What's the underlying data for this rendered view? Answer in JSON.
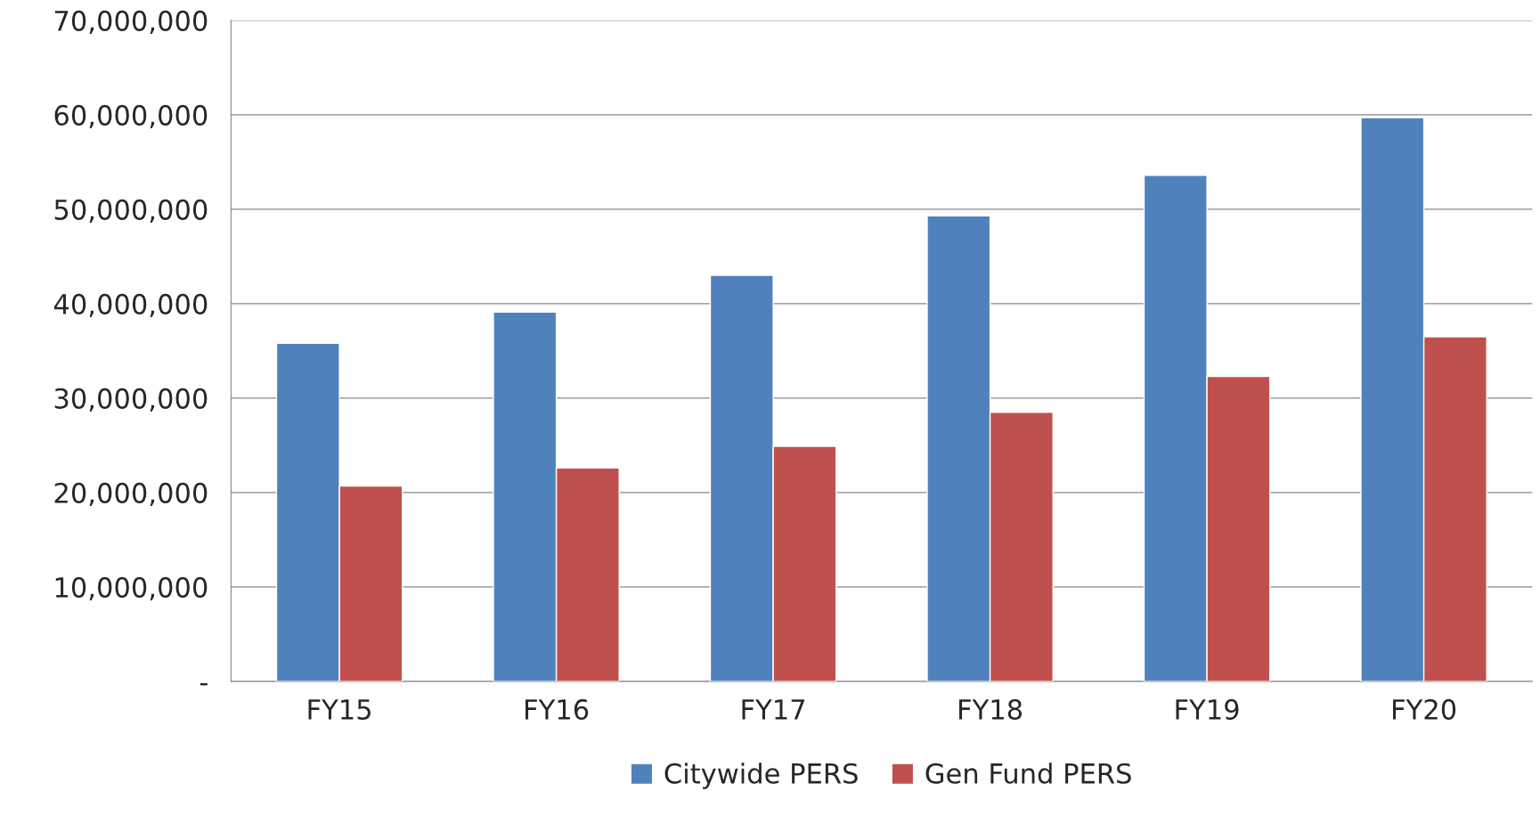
{
  "chart_data": {
    "type": "bar",
    "categories": [
      "FY15",
      "FY16",
      "FY17",
      "FY18",
      "FY19",
      "FY20"
    ],
    "series": [
      {
        "name": "Citywide PERS",
        "color": "#4f81bd",
        "values": [
          35800000,
          39100000,
          43000000,
          49300000,
          53600000,
          59700000
        ]
      },
      {
        "name": "Gen Fund PERS",
        "color": "#c0504d",
        "values": [
          20700000,
          22600000,
          24900000,
          28500000,
          32300000,
          36500000
        ]
      }
    ],
    "ylim": [
      0,
      70000000
    ],
    "yticks": [
      {
        "value": 0,
        "label": "-"
      },
      {
        "value": 10000000,
        "label": "10,000,000"
      },
      {
        "value": 20000000,
        "label": "20,000,000"
      },
      {
        "value": 30000000,
        "label": "30,000,000"
      },
      {
        "value": 40000000,
        "label": "40,000,000"
      },
      {
        "value": 50000000,
        "label": "50,000,000"
      },
      {
        "value": 60000000,
        "label": "60,000,000"
      },
      {
        "value": 70000000,
        "label": "70,000,000"
      }
    ],
    "grid": "y",
    "legend": "bottom"
  }
}
